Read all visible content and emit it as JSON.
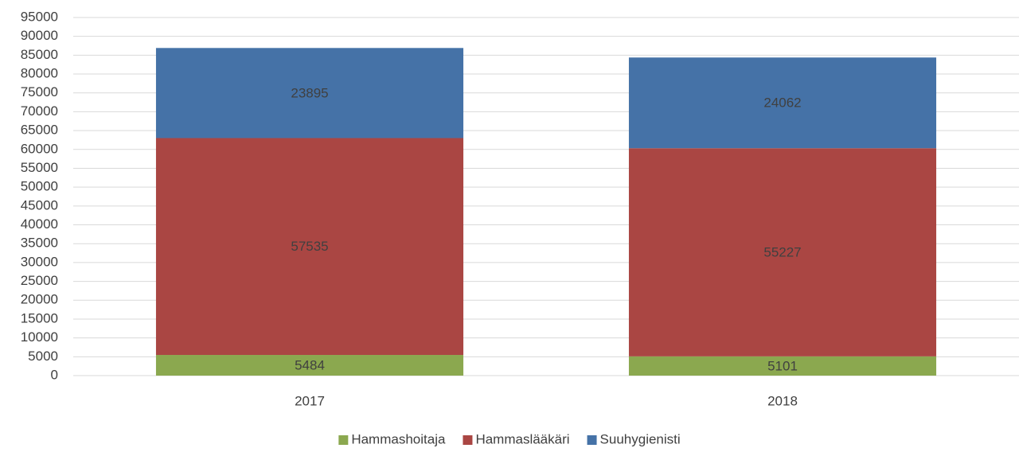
{
  "chart_data": {
    "type": "stacked_bar",
    "categories": [
      "2017",
      "2018"
    ],
    "series": [
      {
        "name": "Hammashoitaja",
        "color": "#8ba84f",
        "values": [
          5484,
          5101
        ]
      },
      {
        "name": "Hammaslääkäri",
        "color": "#aa4643",
        "values": [
          57535,
          55227
        ]
      },
      {
        "name": "Suuhygienisti",
        "color": "#4572a7",
        "values": [
          23895,
          24062
        ]
      }
    ],
    "ylim": [
      0,
      95000
    ],
    "yticks": [
      0,
      5000,
      10000,
      15000,
      20000,
      25000,
      30000,
      35000,
      40000,
      45000,
      50000,
      55000,
      60000,
      65000,
      70000,
      75000,
      80000,
      85000,
      90000,
      95000
    ],
    "grid": true,
    "legend": "bottom"
  }
}
